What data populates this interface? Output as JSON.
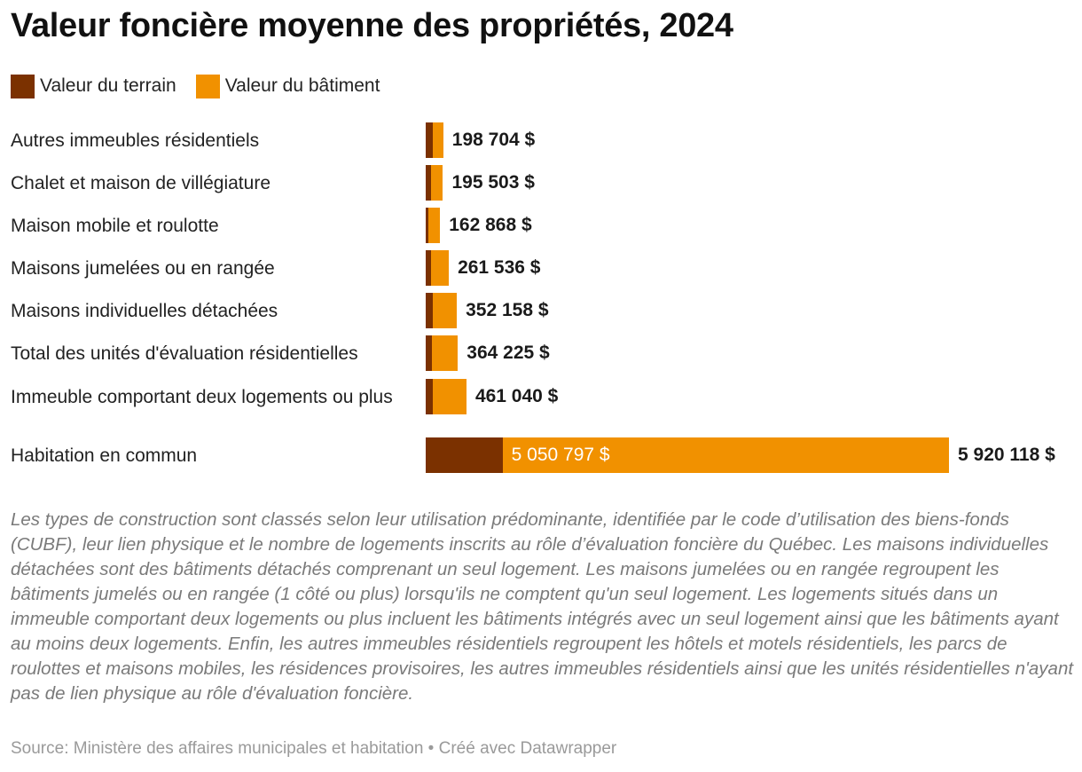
{
  "title": "Valeur foncière moyenne des propriétés, 2024",
  "colors": {
    "terrain": "#7b3100",
    "batiment": "#f19100"
  },
  "legend": [
    {
      "label": "Valeur du terrain",
      "color": "#7b3100"
    },
    {
      "label": "Valeur du bâtiment",
      "color": "#f19100"
    }
  ],
  "chart_data": {
    "type": "bar",
    "orientation": "horizontal",
    "stacked": true,
    "categories": [
      "Autres immeubles résidentiels",
      "Chalet et maison de villégiature",
      "Maison mobile et roulotte",
      "Maisons jumelées ou en rangée",
      "Maisons individuelles détachées",
      "Total des unités d'évaluation résidentielles",
      "Immeuble comportant deux logements ou plus",
      "Habitation en commun"
    ],
    "series": [
      {
        "name": "Valeur du terrain",
        "values": [
          85000,
          56000,
          30000,
          58000,
          82000,
          75000,
          83000,
          869321
        ]
      },
      {
        "name": "Valeur du bâtiment",
        "values": [
          113704,
          139503,
          132868,
          203536,
          270158,
          289225,
          378040,
          5050797
        ]
      }
    ],
    "totals": [
      198704,
      195503,
      162868,
      261536,
      352158,
      364225,
      461040,
      5920118
    ],
    "total_labels": [
      "198 704 $",
      "195 503 $",
      "162 868 $",
      "261 536 $",
      "352 158 $",
      "364 225 $",
      "461 040 $",
      "5 920 118 $"
    ],
    "inner_labels": [
      "",
      "",
      "",
      "",
      "",
      "",
      "",
      "5 050 797 $"
    ],
    "xlim": [
      0,
      5920118
    ]
  },
  "notes": "Les types de construction sont classés selon leur utilisation prédominante, identifiée par le code d’utilisation des biens-fonds (CUBF), leur lien physique et le nombre de logements inscrits au rôle d’évaluation foncière du Québec. Les maisons individuelles détachées sont des bâtiments détachés comprenant un seul logement. Les maisons jumelées ou en rangée regroupent les bâtiments jumelés ou en rangée (1 côté ou plus) lorsqu'ils ne comptent qu'un seul logement. Les logements situés dans un immeuble comportant deux logements ou plus incluent les bâtiments intégrés avec un seul logement ainsi que les bâtiments ayant au moins deux logements. Enfin, les autres immeubles résidentiels regroupent les hôtels et motels résidentiels, les parcs de roulottes et maisons mobiles, les résidences provisoires, les autres immeubles résidentiels ainsi que les unités résidentielles n'ayant pas de lien physique au rôle d'évaluation foncière.",
  "source": "Source: Ministère des affaires municipales et habitation • Créé avec Datawrapper"
}
